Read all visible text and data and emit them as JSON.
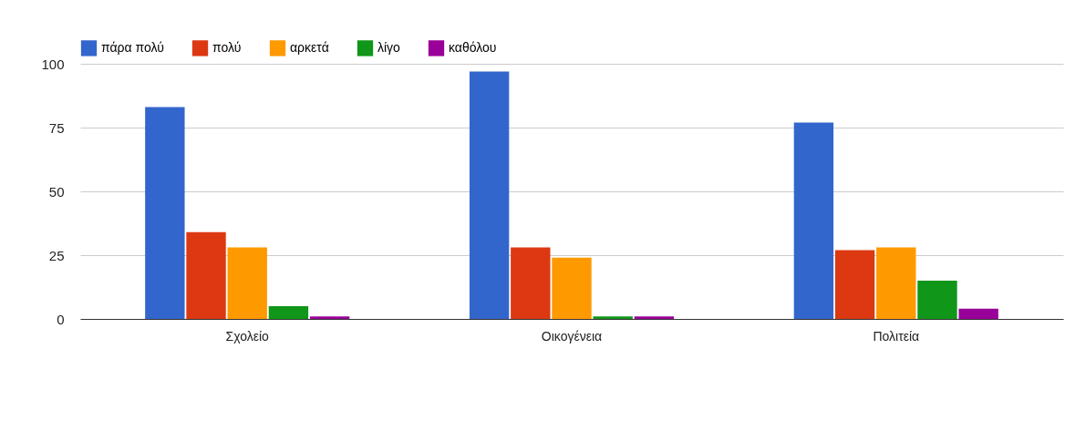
{
  "chart_data": {
    "type": "bar",
    "categories": [
      "Σχολείο",
      "Οικογένεια",
      "Πολιτεία"
    ],
    "series": [
      {
        "name": "πάρα πολύ",
        "color": "#3366cc",
        "values": [
          83,
          97,
          77
        ]
      },
      {
        "name": "πολύ",
        "color": "#dc3912",
        "values": [
          34,
          28,
          27
        ]
      },
      {
        "name": "αρκετά",
        "color": "#ff9900",
        "values": [
          28,
          24,
          28
        ]
      },
      {
        "name": "λίγο",
        "color": "#109618",
        "values": [
          5,
          1,
          15
        ]
      },
      {
        "name": "καθόλου",
        "color": "#990099",
        "values": [
          1,
          1,
          4
        ]
      }
    ],
    "ylim": [
      0,
      100
    ],
    "yticks": [
      0,
      25,
      50,
      75,
      100
    ],
    "grid": "y",
    "legend": "top left"
  }
}
